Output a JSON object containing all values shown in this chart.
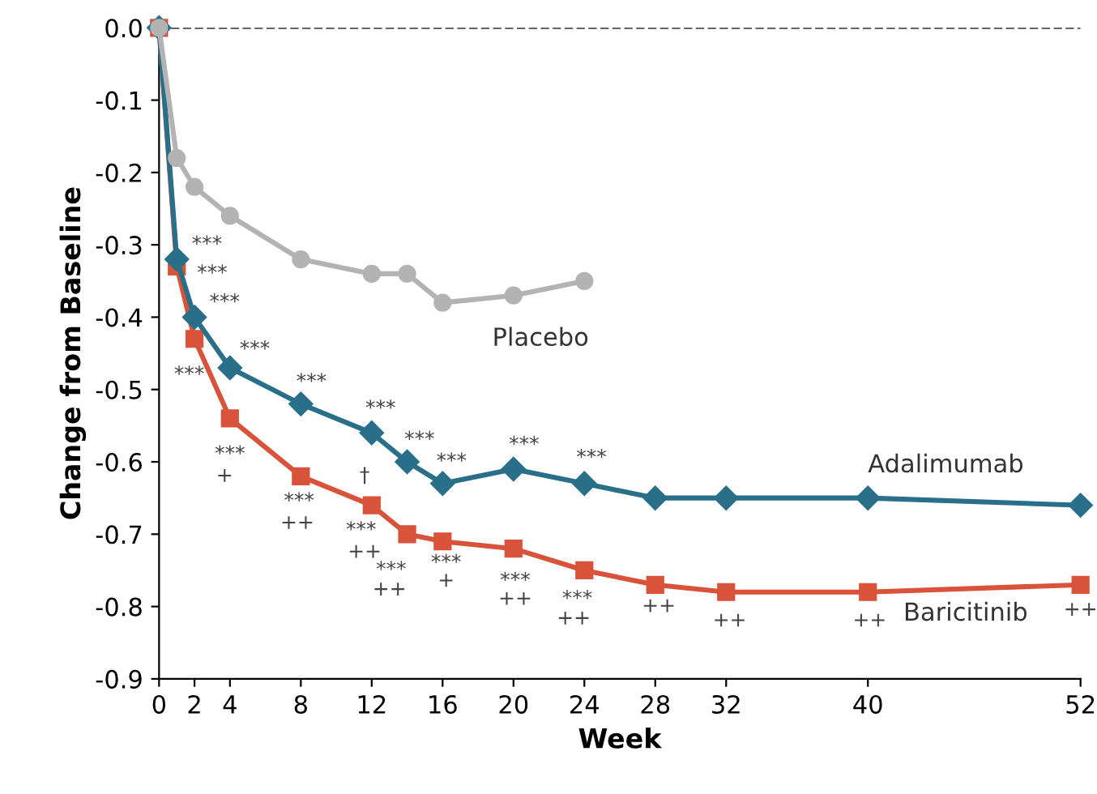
{
  "chart_data": {
    "type": "line",
    "xlabel": "Week",
    "ylabel": "Change from Baseline",
    "xlim": [
      0,
      52
    ],
    "xticks": [
      0,
      2,
      4,
      8,
      12,
      16,
      20,
      24,
      28,
      32,
      40,
      52
    ],
    "ylim": [
      -0.9,
      0.0
    ],
    "yticks": [
      {
        "value": -0.9,
        "label": "-0.9"
      },
      {
        "value": -0.8,
        "label": "-0.8"
      },
      {
        "value": -0.7,
        "label": "-0.7"
      },
      {
        "value": -0.6,
        "label": "-0.6"
      },
      {
        "value": -0.5,
        "label": "-0.5"
      },
      {
        "value": -0.4,
        "label": "-0.4"
      },
      {
        "value": -0.3,
        "label": "-0.3"
      },
      {
        "value": -0.2,
        "label": "-0.2"
      },
      {
        "value": -0.1,
        "label": "-0.1"
      },
      {
        "value": 0.0,
        "label": "0.0"
      }
    ],
    "grid": false,
    "legend": false,
    "line_style": "solid",
    "ref_lines": [
      {
        "axis": "y",
        "value": 0.0,
        "color": "#333333",
        "line_style": "dashed"
      }
    ],
    "series": [
      {
        "name": "Placebo",
        "color": "#b3b3b3",
        "marker": "circle",
        "x": [
          0,
          1,
          2,
          4,
          8,
          12,
          14,
          16,
          20,
          24
        ],
        "values": [
          0.0,
          -0.18,
          -0.22,
          -0.26,
          -0.32,
          -0.34,
          -0.34,
          -0.38,
          -0.37,
          -0.35
        ]
      },
      {
        "name": "Adalimumab",
        "color": "#2a6f8a",
        "marker": "diamond",
        "x": [
          0,
          1,
          2,
          4,
          8,
          12,
          14,
          16,
          20,
          24,
          28,
          32,
          40,
          52
        ],
        "values": [
          0.0,
          -0.32,
          -0.4,
          -0.47,
          -0.52,
          -0.56,
          -0.6,
          -0.63,
          -0.61,
          -0.63,
          -0.65,
          -0.65,
          -0.65,
          -0.66
        ]
      },
      {
        "name": "Baricitinib",
        "color": "#d9533a",
        "marker": "square",
        "x": [
          0,
          1,
          2,
          4,
          8,
          12,
          14,
          16,
          20,
          24,
          28,
          32,
          40,
          52
        ],
        "values": [
          0.0,
          -0.33,
          -0.43,
          -0.54,
          -0.62,
          -0.66,
          -0.7,
          -0.71,
          -0.72,
          -0.75,
          -0.77,
          -0.78,
          -0.78,
          -0.77
        ]
      }
    ],
    "annotations": [
      {
        "text": "***",
        "x": 1,
        "y": -0.32
      },
      {
        "text": "***",
        "x": 1,
        "y": -0.33
      },
      {
        "text": "***",
        "x": 2,
        "y": -0.4
      },
      {
        "text": "***",
        "x": 4,
        "y": -0.47
      },
      {
        "text": "***",
        "x": 2,
        "y": -0.43
      },
      {
        "text": "***",
        "x": 8,
        "y": -0.52
      },
      {
        "text": "***",
        "x": 12,
        "y": -0.56
      },
      {
        "text": "***",
        "x": 14,
        "y": -0.6
      },
      {
        "text": "***",
        "x": 16,
        "y": -0.63
      },
      {
        "text": "***",
        "x": 20,
        "y": -0.61
      },
      {
        "text": "***",
        "x": 24,
        "y": -0.63
      },
      {
        "text": "***",
        "x": 4,
        "y": -0.54
      },
      {
        "text": "+",
        "x": 4,
        "y": -0.54
      },
      {
        "text": "***",
        "x": 8,
        "y": -0.62
      },
      {
        "text": "++",
        "x": 8,
        "y": -0.62
      },
      {
        "text": "†",
        "x": 12,
        "y": -0.66
      },
      {
        "text": "***",
        "x": 12,
        "y": -0.66
      },
      {
        "text": "++",
        "x": 12,
        "y": -0.66
      },
      {
        "text": "***",
        "x": 14,
        "y": -0.7
      },
      {
        "text": "++",
        "x": 14,
        "y": -0.7
      },
      {
        "text": "***",
        "x": 16,
        "y": -0.71
      },
      {
        "text": "+",
        "x": 16,
        "y": -0.71
      },
      {
        "text": "***",
        "x": 20,
        "y": -0.72
      },
      {
        "text": "++",
        "x": 20,
        "y": -0.72
      },
      {
        "text": "***",
        "x": 24,
        "y": -0.75
      },
      {
        "text": "++",
        "x": 24,
        "y": -0.75
      },
      {
        "text": "++",
        "x": 28,
        "y": -0.77
      },
      {
        "text": "++",
        "x": 32,
        "y": -0.78
      },
      {
        "text": "++",
        "x": 40,
        "y": -0.78
      },
      {
        "text": "++",
        "x": 52,
        "y": -0.77
      }
    ]
  }
}
